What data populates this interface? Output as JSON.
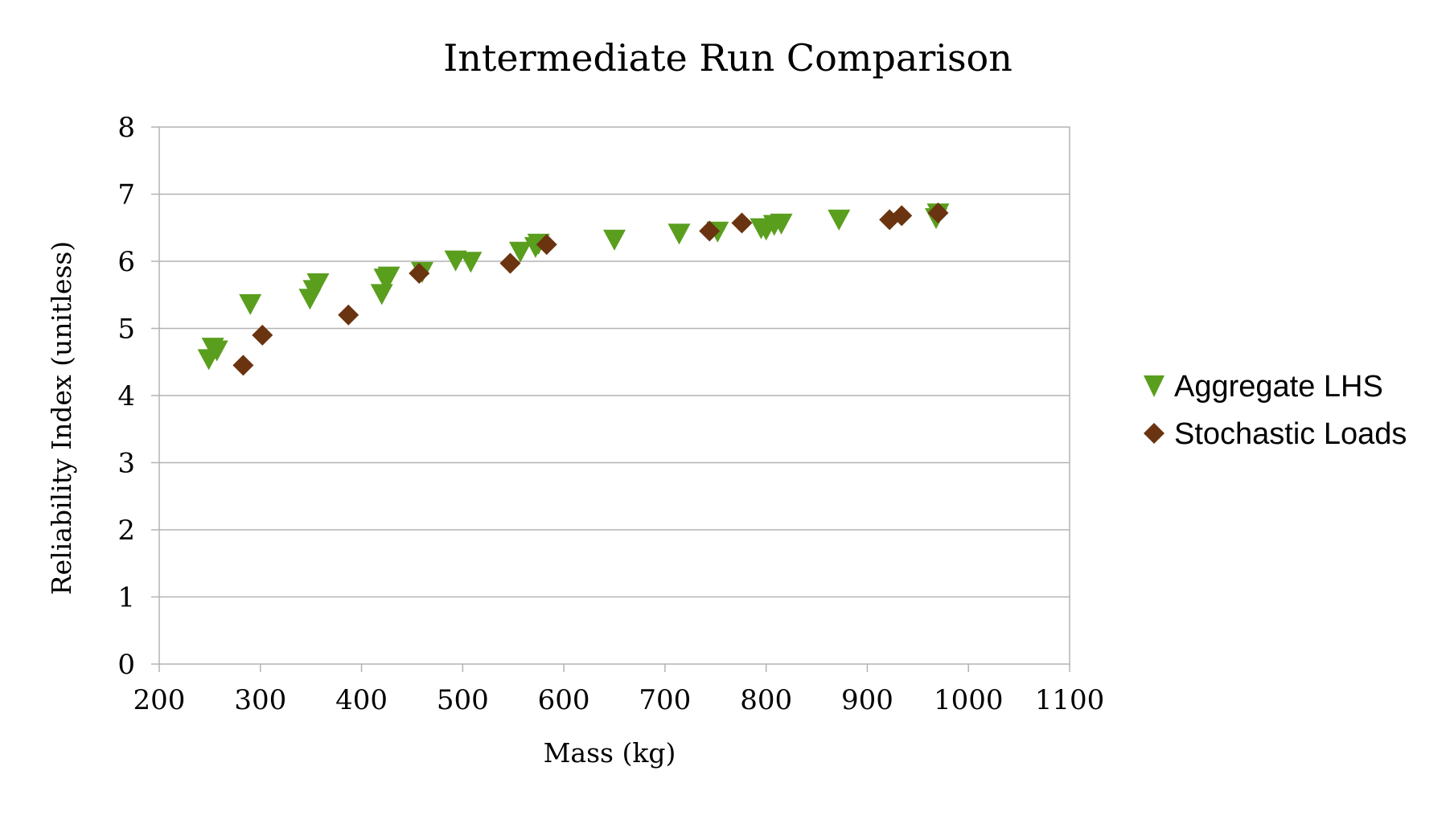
{
  "chart_data": {
    "type": "scatter",
    "title": "Intermediate Run Comparison",
    "xlabel": "Mass (kg)",
    "ylabel": "Reliability Index (unitless)",
    "xlim": [
      200,
      1100
    ],
    "ylim": [
      0,
      8
    ],
    "x_ticks": [
      "200",
      "300",
      "400",
      "500",
      "600",
      "700",
      "800",
      "900",
      "1000",
      "1100"
    ],
    "y_ticks": [
      "0",
      "1",
      "2",
      "3",
      "4",
      "5",
      "6",
      "7",
      "8"
    ],
    "grid": "horizontal",
    "legend_position": "right",
    "series": [
      {
        "name": "Aggregate LHS",
        "marker": "triangle-down",
        "color": "#5a9e1e",
        "points": [
          [
            249,
            4.55
          ],
          [
            253,
            4.72
          ],
          [
            257,
            4.68
          ],
          [
            290,
            5.37
          ],
          [
            349,
            5.45
          ],
          [
            353,
            5.58
          ],
          [
            357,
            5.68
          ],
          [
            420,
            5.52
          ],
          [
            423,
            5.75
          ],
          [
            427,
            5.78
          ],
          [
            460,
            5.85
          ],
          [
            493,
            6.02
          ],
          [
            508,
            6.0
          ],
          [
            557,
            6.15
          ],
          [
            572,
            6.22
          ],
          [
            575,
            6.27
          ],
          [
            650,
            6.33
          ],
          [
            714,
            6.42
          ],
          [
            752,
            6.45
          ],
          [
            795,
            6.5
          ],
          [
            800,
            6.48
          ],
          [
            808,
            6.55
          ],
          [
            815,
            6.57
          ],
          [
            872,
            6.63
          ],
          [
            968,
            6.65
          ],
          [
            970,
            6.72
          ]
        ]
      },
      {
        "name": "Stochastic Loads",
        "marker": "diamond",
        "color": "#6b3410",
        "points": [
          [
            283,
            4.45
          ],
          [
            302,
            4.9
          ],
          [
            387,
            5.2
          ],
          [
            457,
            5.82
          ],
          [
            547,
            5.97
          ],
          [
            583,
            6.25
          ],
          [
            744,
            6.45
          ],
          [
            776,
            6.57
          ],
          [
            922,
            6.62
          ],
          [
            934,
            6.68
          ],
          [
            970,
            6.72
          ]
        ]
      }
    ]
  }
}
